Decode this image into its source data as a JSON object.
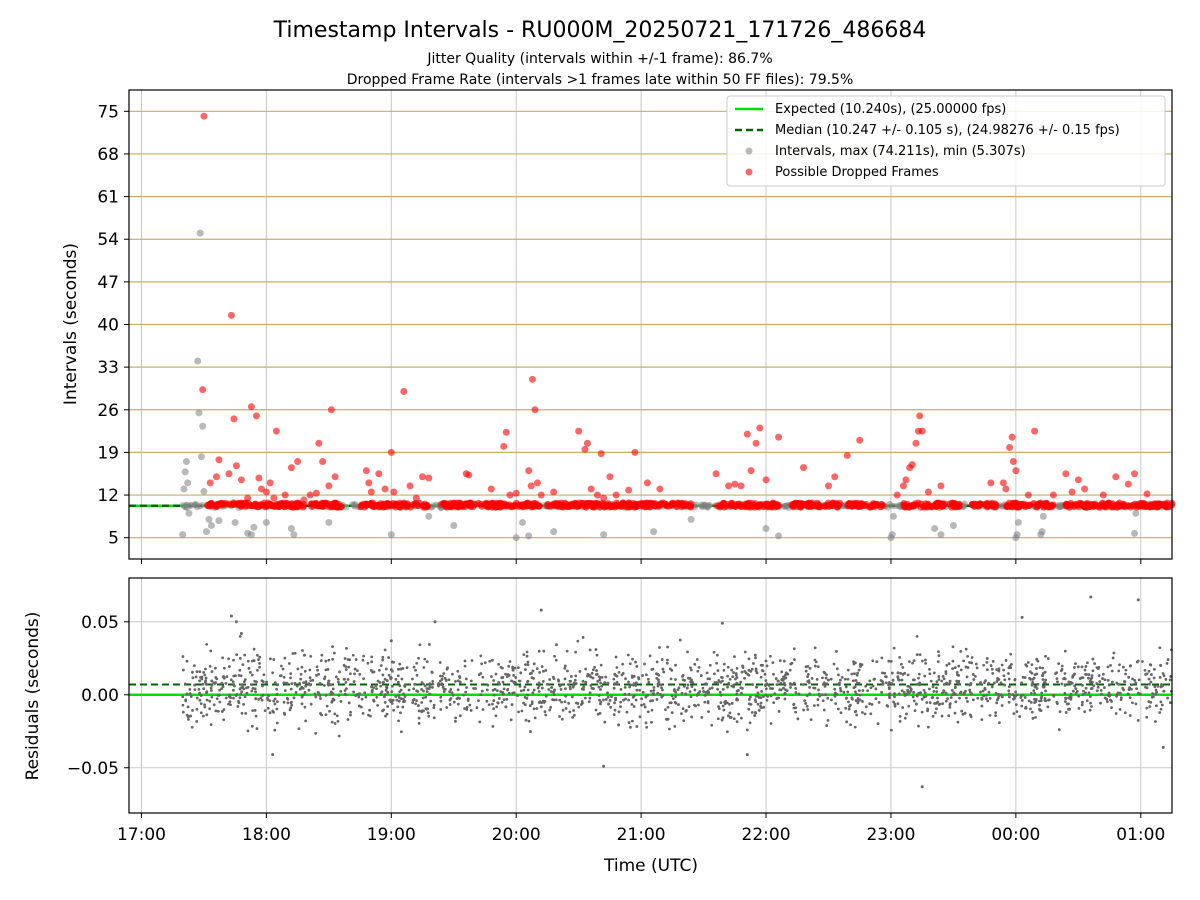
{
  "figure": {
    "title": "Timestamp Intervals - RU000M_20250721_171726_486684",
    "subtitle_1": "Jitter Quality (intervals within +/-1 frame): 86.7%",
    "subtitle_2": "Dropped Frame Rate (intervals >1 frames late within 50 FF files): 79.5%",
    "xlabel": "Time (UTC)",
    "x_tick_labels": [
      "17:00",
      "18:00",
      "19:00",
      "20:00",
      "21:00",
      "22:00",
      "23:00",
      "00:00",
      "01:00"
    ]
  },
  "colors": {
    "expected": "#00e000",
    "median": "#006400",
    "intervals": "#808080",
    "dropped": "#ff0000",
    "hgrid_top": "#c8b060",
    "grid": "#c8c8c8",
    "residuals": "#666666"
  },
  "chart_data": [
    {
      "type": "scatter",
      "ylabel": "Intervals (seconds)",
      "x_axis": {
        "unit": "hours since 17:00 UTC",
        "range": [
          -0.1,
          8.25
        ],
        "tick_values": [
          0,
          1,
          2,
          3,
          4,
          5,
          6,
          7,
          8
        ]
      },
      "y_axis": {
        "range": [
          1.5,
          78.5
        ],
        "tick_values": [
          5,
          12,
          19,
          26,
          33,
          40,
          47,
          54,
          61,
          68,
          75
        ],
        "tick_labels": [
          "5",
          "12",
          "19",
          "26",
          "33",
          "40",
          "47",
          "54",
          "61",
          "68",
          "75"
        ]
      },
      "grid": "horizontal lines at ticks (tan), vertical lines at x ticks (gray)",
      "legend": {
        "placement": "top-right",
        "entries": [
          "Expected (10.240s), (25.00000 fps)",
          "Median (10.247 +/- 0.105 s), (24.98276 +/- 0.15 fps)",
          "Intervals, max (74.211s), min (5.307s)",
          "Possible Dropped Frames"
        ]
      },
      "series": [
        {
          "name": "Expected (10.240s), (25.00000 fps)",
          "kind": "hline",
          "y": 10.24
        },
        {
          "name": "Median (10.247 +/- 0.105 s), (24.98276 +/- 0.15 fps)",
          "kind": "hline-dashed",
          "y": 10.247
        },
        {
          "name": "Intervals, max (74.211s), min (5.307s)",
          "kind": "points",
          "x_range": [
            0.33,
            8.25
          ],
          "baseline": 10.24,
          "points": [
            [
              0.33,
              5.5
            ],
            [
              0.34,
              13.0
            ],
            [
              0.35,
              15.8
            ],
            [
              0.36,
              17.5
            ],
            [
              0.37,
              14.0
            ],
            [
              0.38,
              9.0
            ],
            [
              0.45,
              34.0
            ],
            [
              0.46,
              25.5
            ],
            [
              0.47,
              55.0
            ],
            [
              0.48,
              18.3
            ],
            [
              0.49,
              23.3
            ],
            [
              0.5,
              12.6
            ],
            [
              0.52,
              6.0
            ],
            [
              0.54,
              8.0
            ],
            [
              0.56,
              7.0
            ],
            [
              0.62,
              7.8
            ],
            [
              0.75,
              7.5
            ],
            [
              0.85,
              5.7
            ],
            [
              0.88,
              5.5
            ],
            [
              0.9,
              6.7
            ],
            [
              1.0,
              7.5
            ],
            [
              1.2,
              6.5
            ],
            [
              1.22,
              5.5
            ],
            [
              1.5,
              7.5
            ],
            [
              2.0,
              5.5
            ],
            [
              2.3,
              8.5
            ],
            [
              2.5,
              7.0
            ],
            [
              3.0,
              5.0
            ],
            [
              3.05,
              7.5
            ],
            [
              3.1,
              5.3
            ],
            [
              3.3,
              6.0
            ],
            [
              3.7,
              5.5
            ],
            [
              4.1,
              6.0
            ],
            [
              4.4,
              8.0
            ],
            [
              5.0,
              6.5
            ],
            [
              5.1,
              5.3
            ],
            [
              6.0,
              5.0
            ],
            [
              6.01,
              5.5
            ],
            [
              6.02,
              8.5
            ],
            [
              6.35,
              6.5
            ],
            [
              6.4,
              5.5
            ],
            [
              6.5,
              7.0
            ],
            [
              7.0,
              5.0
            ],
            [
              7.01,
              5.5
            ],
            [
              7.02,
              7.5
            ],
            [
              7.2,
              5.5
            ],
            [
              7.21,
              6.0
            ],
            [
              7.22,
              8.5
            ],
            [
              7.95,
              5.7
            ],
            [
              7.96,
              9.0
            ]
          ]
        },
        {
          "name": "Possible Dropped Frames",
          "kind": "points",
          "band": [
            10.0,
            10.7
          ],
          "band_segments": [
            [
              0.52,
              1.6
            ],
            [
              1.75,
              2.3
            ],
            [
              2.4,
              3.2
            ],
            [
              3.25,
              4.4
            ],
            [
              4.6,
              5.1
            ],
            [
              5.2,
              5.6
            ],
            [
              5.65,
              5.95
            ],
            [
              6.1,
              6.55
            ],
            [
              6.65,
              6.85
            ],
            [
              6.92,
              7.3
            ],
            [
              7.4,
              8.25
            ]
          ],
          "points": [
            [
              0.5,
              74.2
            ],
            [
              0.49,
              29.3
            ],
            [
              0.55,
              14.0
            ],
            [
              0.6,
              15.0
            ],
            [
              0.62,
              17.8
            ],
            [
              0.7,
              15.5
            ],
            [
              0.72,
              41.5
            ],
            [
              0.74,
              24.5
            ],
            [
              0.76,
              16.8
            ],
            [
              0.8,
              14.5
            ],
            [
              0.85,
              11.5
            ],
            [
              0.88,
              26.5
            ],
            [
              0.92,
              25.0
            ],
            [
              0.94,
              14.8
            ],
            [
              0.96,
              13.0
            ],
            [
              1.0,
              12.5
            ],
            [
              1.03,
              14.0
            ],
            [
              1.06,
              11.5
            ],
            [
              1.08,
              22.5
            ],
            [
              1.15,
              12.0
            ],
            [
              1.2,
              16.5
            ],
            [
              1.25,
              17.5
            ],
            [
              1.3,
              11.2
            ],
            [
              1.35,
              12.0
            ],
            [
              1.4,
              12.3
            ],
            [
              1.42,
              20.5
            ],
            [
              1.45,
              17.5
            ],
            [
              1.5,
              13.5
            ],
            [
              1.52,
              26.0
            ],
            [
              1.55,
              15.0
            ],
            [
              1.8,
              16.0
            ],
            [
              1.82,
              14.0
            ],
            [
              1.84,
              12.5
            ],
            [
              1.9,
              15.5
            ],
            [
              1.95,
              13.0
            ],
            [
              2.0,
              19.0
            ],
            [
              2.02,
              12.5
            ],
            [
              2.1,
              29.0
            ],
            [
              2.15,
              13.5
            ],
            [
              2.2,
              11.5
            ],
            [
              2.25,
              15.0
            ],
            [
              2.3,
              14.8
            ],
            [
              2.6,
              15.5
            ],
            [
              2.62,
              15.3
            ],
            [
              2.8,
              13.0
            ],
            [
              2.9,
              20.0
            ],
            [
              2.92,
              22.3
            ],
            [
              2.95,
              12.0
            ],
            [
              3.0,
              12.3
            ],
            [
              3.1,
              16.0
            ],
            [
              3.12,
              13.5
            ],
            [
              3.13,
              31.0
            ],
            [
              3.15,
              26.0
            ],
            [
              3.17,
              14.0
            ],
            [
              3.2,
              12.0
            ],
            [
              3.3,
              12.5
            ],
            [
              3.5,
              22.5
            ],
            [
              3.55,
              19.5
            ],
            [
              3.57,
              20.5
            ],
            [
              3.6,
              13.0
            ],
            [
              3.65,
              12.0
            ],
            [
              3.68,
              18.8
            ],
            [
              3.7,
              11.5
            ],
            [
              3.75,
              15.0
            ],
            [
              3.8,
              12.0
            ],
            [
              3.9,
              12.8
            ],
            [
              3.95,
              19.0
            ],
            [
              4.05,
              14.0
            ],
            [
              4.15,
              13.0
            ],
            [
              4.6,
              15.5
            ],
            [
              4.7,
              13.5
            ],
            [
              4.75,
              13.8
            ],
            [
              4.8,
              13.5
            ],
            [
              4.85,
              22.0
            ],
            [
              4.88,
              16.0
            ],
            [
              4.92,
              20.5
            ],
            [
              4.95,
              23.0
            ],
            [
              5.0,
              14.5
            ],
            [
              5.1,
              21.5
            ],
            [
              5.3,
              16.5
            ],
            [
              5.5,
              13.5
            ],
            [
              5.55,
              15.0
            ],
            [
              5.65,
              18.5
            ],
            [
              5.75,
              21.0
            ],
            [
              6.05,
              12.0
            ],
            [
              6.1,
              13.5
            ],
            [
              6.12,
              14.5
            ],
            [
              6.15,
              16.5
            ],
            [
              6.17,
              17.0
            ],
            [
              6.2,
              20.5
            ],
            [
              6.22,
              22.5
            ],
            [
              6.23,
              25.0
            ],
            [
              6.25,
              22.5
            ],
            [
              6.3,
              12.5
            ],
            [
              6.4,
              13.5
            ],
            [
              6.8,
              14.0
            ],
            [
              6.9,
              14.0
            ],
            [
              6.92,
              13.0
            ],
            [
              6.95,
              19.8
            ],
            [
              6.97,
              21.5
            ],
            [
              6.98,
              17.5
            ],
            [
              7.0,
              16.0
            ],
            [
              7.1,
              12.0
            ],
            [
              7.15,
              22.5
            ],
            [
              7.3,
              12.0
            ],
            [
              7.4,
              15.5
            ],
            [
              7.45,
              12.5
            ],
            [
              7.5,
              14.5
            ],
            [
              7.55,
              13.0
            ],
            [
              7.7,
              12.0
            ],
            [
              7.8,
              15.0
            ],
            [
              7.9,
              13.8
            ],
            [
              7.95,
              15.5
            ],
            [
              8.05,
              12.2
            ]
          ]
        }
      ]
    },
    {
      "type": "scatter",
      "ylabel": "Residuals (seconds)",
      "x_axis": {
        "unit": "hours since 17:00 UTC",
        "range": [
          -0.1,
          8.25
        ],
        "tick_values": [
          0,
          1,
          2,
          3,
          4,
          5,
          6,
          7,
          8
        ]
      },
      "y_axis": {
        "range": [
          -0.081,
          0.08
        ],
        "tick_values": [
          0.05,
          0.0,
          -0.05
        ],
        "tick_labels": [
          "0.05",
          "0.00",
          "−0.05"
        ]
      },
      "grid": "horizontal and vertical lines at ticks (gray)",
      "series": [
        {
          "name": "",
          "kind": "hline",
          "y": 0.0
        },
        {
          "name": "",
          "kind": "hline-dashed",
          "y": 0.007
        },
        {
          "name": "",
          "kind": "points",
          "x_range": [
            0.33,
            8.25
          ],
          "center": 0.005,
          "spread": 0.012,
          "outliers": [
            [
              0.72,
              0.054
            ],
            [
              0.76,
              0.05
            ],
            [
              0.8,
              0.042
            ],
            [
              1.05,
              -0.041
            ],
            [
              2.0,
              0.037
            ],
            [
              2.35,
              0.05
            ],
            [
              3.2,
              0.058
            ],
            [
              3.7,
              -0.049
            ],
            [
              4.65,
              0.049
            ],
            [
              4.85,
              -0.041
            ],
            [
              6.25,
              -0.063
            ],
            [
              7.05,
              0.053
            ],
            [
              7.6,
              0.067
            ],
            [
              7.98,
              0.065
            ],
            [
              8.18,
              -0.036
            ]
          ]
        }
      ]
    }
  ]
}
